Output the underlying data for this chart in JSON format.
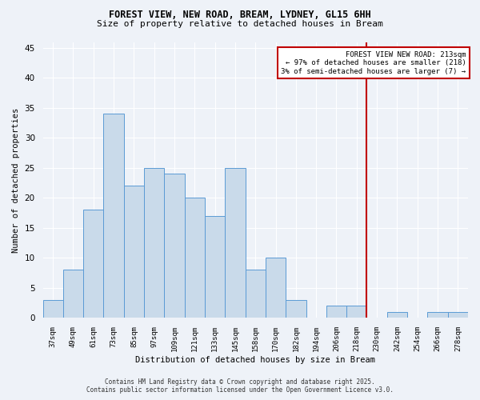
{
  "title_line1": "FOREST VIEW, NEW ROAD, BREAM, LYDNEY, GL15 6HH",
  "title_line2": "Size of property relative to detached houses in Bream",
  "xlabel": "Distribution of detached houses by size in Bream",
  "ylabel": "Number of detached properties",
  "bar_labels": [
    "37sqm",
    "49sqm",
    "61sqm",
    "73sqm",
    "85sqm",
    "97sqm",
    "109sqm",
    "121sqm",
    "133sqm",
    "145sqm",
    "158sqm",
    "170sqm",
    "182sqm",
    "194sqm",
    "206sqm",
    "218sqm",
    "230sqm",
    "242sqm",
    "254sqm",
    "266sqm",
    "278sqm"
  ],
  "bar_heights": [
    3,
    8,
    18,
    34,
    22,
    25,
    24,
    20,
    17,
    25,
    8,
    10,
    3,
    0,
    2,
    2,
    0,
    1,
    0,
    1,
    1
  ],
  "bar_color": "#c9daea",
  "bar_edge_color": "#5b9bd5",
  "vline_x_index": 15.5,
  "vline_color": "#c00000",
  "annotation_title": "FOREST VIEW NEW ROAD: 213sqm",
  "annotation_line2": "← 97% of detached houses are smaller (218)",
  "annotation_line3": "3% of semi-detached houses are larger (7) →",
  "annotation_box_color": "#c00000",
  "ylim": [
    0,
    46
  ],
  "yticks": [
    0,
    5,
    10,
    15,
    20,
    25,
    30,
    35,
    40,
    45
  ],
  "background_color": "#eef2f8",
  "grid_color": "#ffffff",
  "footnote1": "Contains HM Land Registry data © Crown copyright and database right 2025.",
  "footnote2": "Contains public sector information licensed under the Open Government Licence v3.0."
}
